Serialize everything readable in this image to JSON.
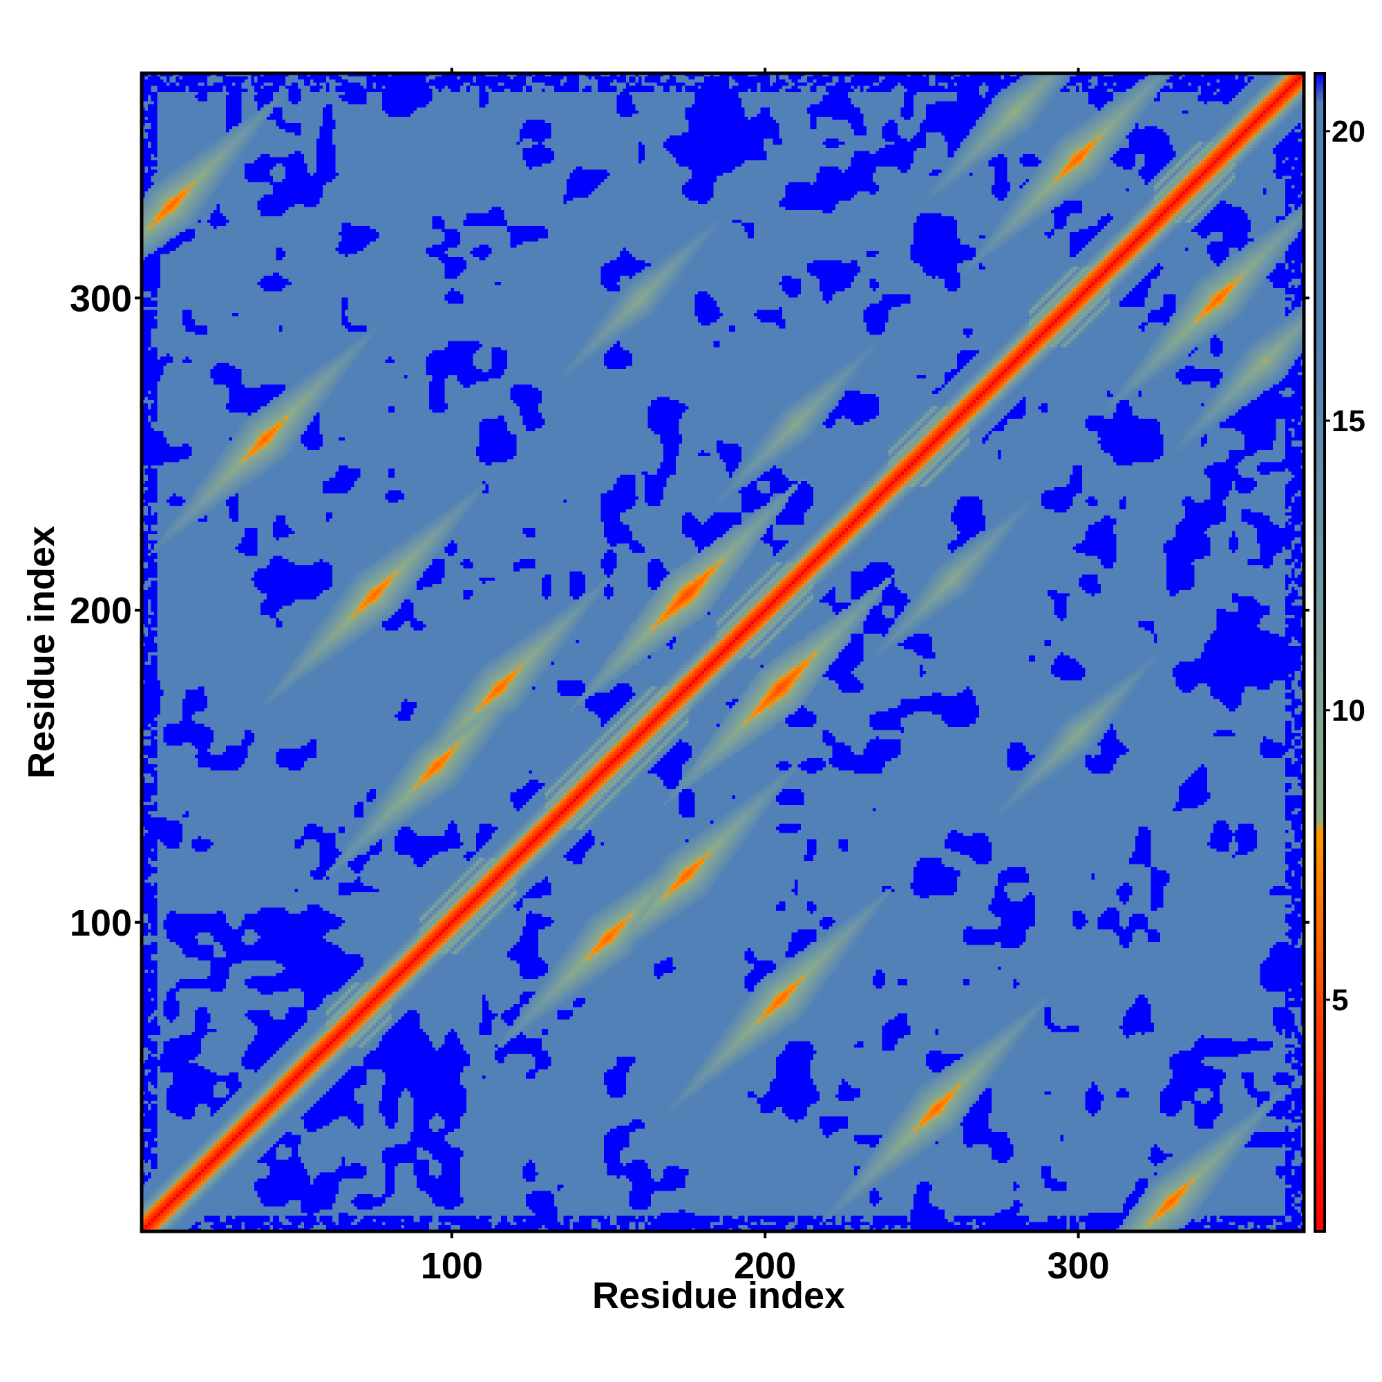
{
  "chart_data": {
    "type": "heatmap",
    "title": "",
    "xlabel": "Residue index",
    "ylabel": "Residue index",
    "xlim": [
      1,
      372
    ],
    "ylim": [
      1,
      372
    ],
    "x_ticks": [
      100,
      200,
      300
    ],
    "y_ticks": [
      100,
      200,
      300
    ],
    "colorbar": {
      "range": [
        1,
        21
      ],
      "ticks": [
        5,
        10,
        15,
        20
      ],
      "stops": [
        {
          "value": 1,
          "color": "#ff0000"
        },
        {
          "value": 4.5,
          "color": "#ff3a00"
        },
        {
          "value": 7.9,
          "color": "#ff9900"
        },
        {
          "value": 8.1,
          "color": "#8fae86"
        },
        {
          "value": 12.5,
          "color": "#6f96a6"
        },
        {
          "value": 16.5,
          "color": "#5181b6"
        },
        {
          "value": 20.5,
          "color": "#5181b6"
        },
        {
          "value": 21,
          "color": "#0000ff"
        }
      ]
    },
    "diagonal_value": 1,
    "background_value": 17,
    "far_value": 21,
    "contact_features": [
      {
        "type": "helix_block",
        "from": 60,
        "to": 80
      },
      {
        "type": "helix_block",
        "from": 90,
        "to": 120
      },
      {
        "type": "helix_block",
        "from": 130,
        "to": 175
      },
      {
        "type": "helix_block",
        "from": 185,
        "to": 215
      },
      {
        "type": "helix_block",
        "from": 240,
        "to": 265
      },
      {
        "type": "helix_block",
        "from": 285,
        "to": 310
      },
      {
        "type": "helix_block",
        "from": 325,
        "to": 350
      },
      {
        "type": "cross_contact",
        "i": 150,
        "j": 95,
        "value": 6
      },
      {
        "type": "cross_contact",
        "i": 175,
        "j": 115,
        "value": 6
      },
      {
        "type": "cross_contact",
        "i": 205,
        "j": 75,
        "value": 6
      },
      {
        "type": "cross_contact",
        "i": 205,
        "j": 175,
        "value": 5
      },
      {
        "type": "cross_contact",
        "i": 255,
        "j": 40,
        "value": 6
      },
      {
        "type": "cross_contact",
        "i": 260,
        "j": 210,
        "value": 9
      },
      {
        "type": "cross_contact",
        "i": 300,
        "j": 160,
        "value": 9
      },
      {
        "type": "cross_contact",
        "i": 345,
        "j": 300,
        "value": 6
      },
      {
        "type": "cross_contact",
        "i": 360,
        "j": 280,
        "value": 8
      },
      {
        "type": "cross_contact",
        "i": 330,
        "j": 10,
        "value": 6
      }
    ]
  }
}
